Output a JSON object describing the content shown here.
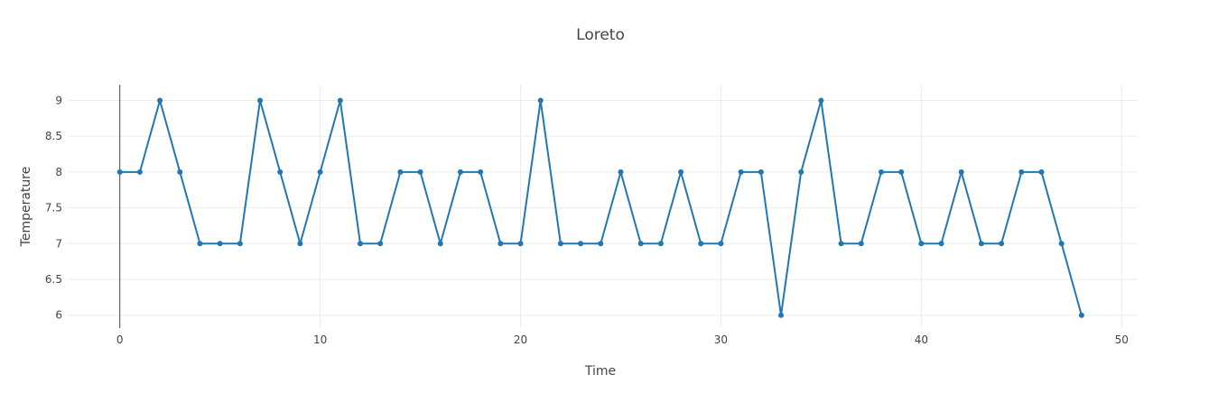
{
  "chart_data": {
    "type": "line",
    "title": "Loreto",
    "xlabel": "Time",
    "ylabel": "Temperature",
    "xlim": [
      -2.6,
      50.8
    ],
    "ylim": [
      5.82,
      9.22
    ],
    "x_ticks": [
      0,
      10,
      20,
      30,
      40,
      50
    ],
    "y_ticks": [
      6,
      6.5,
      7,
      7.5,
      8,
      8.5,
      9
    ],
    "y_tick_labels": [
      "6",
      "6.5",
      "7",
      "7.5",
      "8",
      "8.5",
      "9"
    ],
    "grid": true,
    "legend": "none",
    "line_color": "#1f77b4",
    "series": [
      {
        "x": [
          0,
          1,
          2,
          3,
          4,
          5,
          6,
          7,
          8,
          9,
          10,
          11,
          12,
          13,
          14,
          15,
          16,
          17,
          18,
          19,
          20,
          21,
          22,
          23,
          24,
          25,
          26,
          27,
          28,
          29,
          30,
          31,
          32,
          33,
          34,
          35,
          36,
          37,
          38,
          39,
          40,
          41,
          42,
          43,
          44,
          45,
          46,
          47,
          48
        ],
        "values": [
          8,
          8,
          9,
          8,
          7,
          7,
          7,
          9,
          8,
          7,
          8,
          9,
          7,
          7,
          8,
          8,
          7,
          8,
          8,
          7,
          7,
          9,
          7,
          7,
          7,
          8,
          7,
          7,
          8,
          7,
          7,
          8,
          8,
          6,
          8,
          9,
          7,
          7,
          8,
          8,
          7,
          7,
          8,
          7,
          7,
          8,
          8,
          7,
          6
        ]
      }
    ]
  }
}
